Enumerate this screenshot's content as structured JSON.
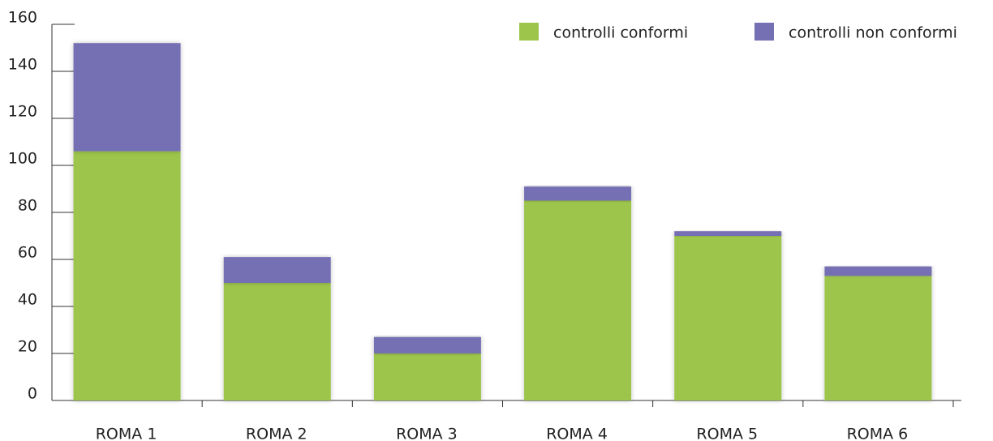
{
  "chart_data": {
    "type": "stacked_bar",
    "categories": [
      "ROMA 1",
      "ROMA 2",
      "ROMA 3",
      "ROMA 4",
      "ROMA 5",
      "ROMA 6"
    ],
    "series": [
      {
        "name": "controlli conformi",
        "color": "#9dc54c",
        "values": [
          106,
          50,
          20,
          85,
          70,
          53
        ]
      },
      {
        "name": "controlli non conformi",
        "color": "#7570b3",
        "values": [
          46,
          11,
          7,
          6,
          2,
          4
        ]
      }
    ],
    "ylim": [
      0,
      160
    ],
    "yticks": [
      0,
      20,
      40,
      60,
      80,
      100,
      120,
      140,
      160
    ],
    "legend": "top-right"
  }
}
